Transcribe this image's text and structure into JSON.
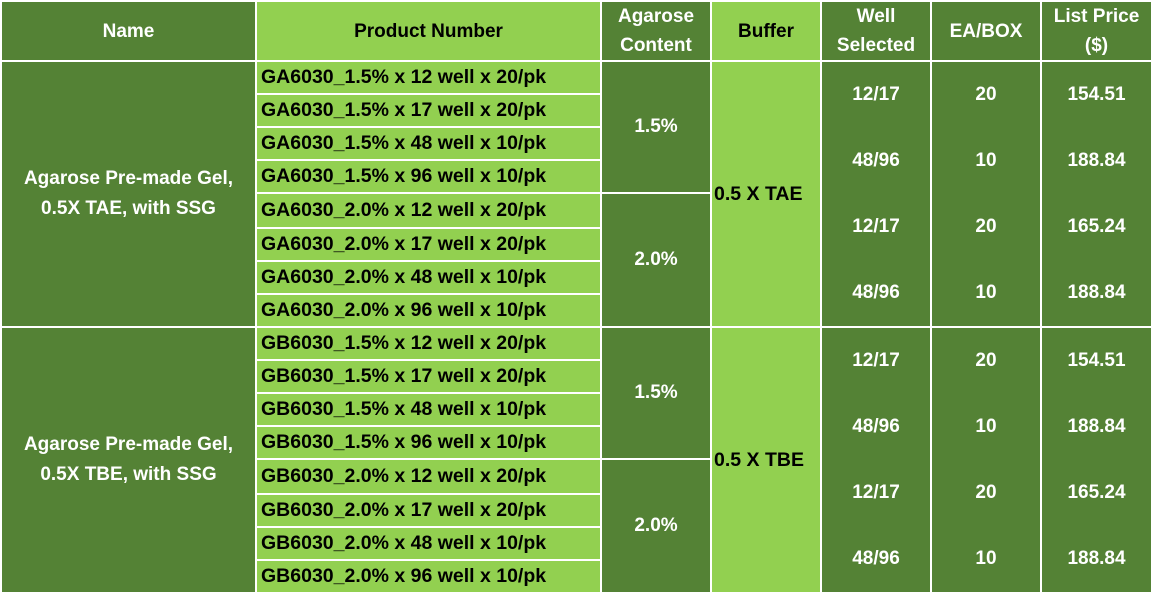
{
  "headers": {
    "name": "Name",
    "product_number": "Product Number",
    "agarose_line1": "Agarose",
    "agarose_line2": "Content",
    "buffer": "Buffer",
    "well_line1": "Well",
    "well_line2": "Selected",
    "ea_box": "EA/BOX",
    "price_line1": "List Price",
    "price_line2": "($)"
  },
  "groups": [
    {
      "name_line1": "Agarose Pre-made Gel,",
      "name_line2": "0.5X TAE, with SSG",
      "buffer": "0.5 X TAE",
      "subgroups": [
        {
          "content": "1.5%",
          "products": [
            "GA6030_1.5% x 12 well x 20/pk",
            "GA6030_1.5% x 17 well x 20/pk",
            "GA6030_1.5% x 48 well x 10/pk",
            "GA6030_1.5% x 96 well x 10/pk"
          ]
        },
        {
          "content": "2.0%",
          "products": [
            "GA6030_2.0% x 12 well x 20/pk",
            "GA6030_2.0% x 17 well x 20/pk",
            "GA6030_2.0% x 48 well x 10/pk",
            "GA6030_2.0% x 96 well x 10/pk"
          ]
        }
      ],
      "wells": [
        "12/17",
        "48/96",
        "12/17",
        "48/96"
      ],
      "ea_box": [
        "20",
        "10",
        "20",
        "10"
      ],
      "prices": [
        "154.51",
        "188.84",
        "165.24",
        "188.84"
      ]
    },
    {
      "name_line1": "Agarose Pre-made Gel,",
      "name_line2": "0.5X TBE, with SSG",
      "buffer": "0.5 X TBE",
      "subgroups": [
        {
          "content": "1.5%",
          "products": [
            "GB6030_1.5% x 12 well x 20/pk",
            "GB6030_1.5% x 17 well x 20/pk",
            "GB6030_1.5% x 48 well x 10/pk",
            "GB6030_1.5% x 96 well x 10/pk"
          ]
        },
        {
          "content": "2.0%",
          "products": [
            "GB6030_2.0% x 12 well x 20/pk",
            "GB6030_2.0% x 17 well x 20/pk",
            "GB6030_2.0% x 48 well x 10/pk",
            "GB6030_2.0% x 96 well x 10/pk"
          ]
        }
      ],
      "wells": [
        "12/17",
        "48/96",
        "12/17",
        "48/96"
      ],
      "ea_box": [
        "20",
        "10",
        "20",
        "10"
      ],
      "prices": [
        "154.51",
        "188.84",
        "165.24",
        "188.84"
      ]
    }
  ],
  "colors": {
    "dark_green": "#548235",
    "light_green": "#92d050",
    "border": "#ffffff"
  }
}
